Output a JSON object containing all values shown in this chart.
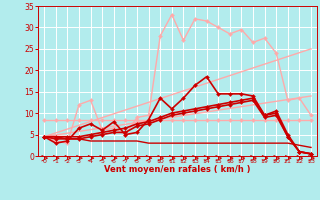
{
  "background_color": "#b2eced",
  "grid_color": "#ffffff",
  "xlabel": "Vent moyen/en rafales ( km/h )",
  "xlim": [
    -0.5,
    23.5
  ],
  "ylim": [
    0,
    35
  ],
  "xticks": [
    0,
    1,
    2,
    3,
    4,
    5,
    6,
    7,
    8,
    9,
    10,
    11,
    12,
    13,
    14,
    15,
    16,
    17,
    18,
    19,
    20,
    21,
    22,
    23
  ],
  "yticks": [
    0,
    5,
    10,
    15,
    20,
    25,
    30,
    35
  ],
  "series": [
    {
      "x": [
        0,
        1,
        2,
        3,
        4,
        5,
        6,
        7,
        8,
        9,
        10,
        11,
        12,
        13,
        14,
        15,
        16,
        17,
        18,
        19,
        20,
        21,
        22,
        23
      ],
      "y": [
        8.5,
        8.5,
        8.5,
        8.5,
        8.5,
        8.5,
        8.5,
        8.5,
        8.5,
        8.5,
        8.5,
        8.5,
        8.5,
        8.5,
        8.5,
        8.5,
        8.5,
        8.5,
        8.5,
        8.5,
        8.5,
        8.5,
        8.5,
        8.5
      ],
      "color": "#ffaaaa",
      "lw": 1.0,
      "marker": "D",
      "ms": 2.0
    },
    {
      "x": [
        0,
        23
      ],
      "y": [
        4.5,
        25.0
      ],
      "color": "#ffaaaa",
      "lw": 1.0,
      "marker": null,
      "ms": 0
    },
    {
      "x": [
        0,
        23
      ],
      "y": [
        4.5,
        14.0
      ],
      "color": "#ffaaaa",
      "lw": 1.0,
      "marker": null,
      "ms": 0
    },
    {
      "x": [
        0,
        1,
        2,
        3,
        4,
        5,
        6,
        7,
        8,
        9,
        10,
        11,
        12,
        13,
        14,
        15,
        16,
        17,
        18,
        19,
        20,
        21,
        22,
        23
      ],
      "y": [
        4.5,
        3.5,
        3.0,
        12.0,
        13.0,
        6.0,
        6.5,
        5.0,
        9.0,
        9.5,
        28.0,
        33.0,
        27.0,
        32.0,
        31.5,
        30.0,
        28.5,
        29.5,
        26.5,
        27.5,
        24.0,
        13.0,
        13.5,
        9.5
      ],
      "color": "#ffaaaa",
      "lw": 1.0,
      "marker": "D",
      "ms": 2.0
    },
    {
      "x": [
        0,
        1,
        2,
        3,
        4,
        5,
        6,
        7,
        8,
        9,
        10,
        11,
        12,
        13,
        14,
        15,
        16,
        17,
        18,
        19,
        20,
        21,
        22,
        23
      ],
      "y": [
        4.5,
        3.0,
        3.5,
        6.5,
        7.5,
        6.0,
        8.0,
        5.0,
        5.5,
        8.5,
        13.5,
        11.0,
        13.5,
        16.5,
        18.5,
        14.5,
        14.5,
        14.5,
        14.0,
        9.5,
        10.5,
        5.0,
        1.0,
        0.5
      ],
      "color": "#cc0000",
      "lw": 1.2,
      "marker": "D",
      "ms": 2.0
    },
    {
      "x": [
        0,
        1,
        2,
        3,
        4,
        5,
        6,
        7,
        8,
        9,
        10,
        11,
        12,
        13,
        14,
        15,
        16,
        17,
        18,
        19,
        20,
        21,
        22,
        23
      ],
      "y": [
        4.5,
        4.5,
        4.5,
        4.5,
        5.0,
        5.5,
        6.0,
        6.5,
        7.5,
        8.0,
        9.0,
        10.0,
        10.5,
        11.0,
        11.5,
        12.0,
        12.5,
        13.0,
        13.5,
        9.5,
        10.0,
        4.5,
        1.0,
        0.5
      ],
      "color": "#cc0000",
      "lw": 1.2,
      "marker": "D",
      "ms": 2.0
    },
    {
      "x": [
        0,
        1,
        2,
        3,
        4,
        5,
        6,
        7,
        8,
        9,
        10,
        11,
        12,
        13,
        14,
        15,
        16,
        17,
        18,
        19,
        20,
        21,
        22,
        23
      ],
      "y": [
        4.5,
        4.0,
        4.0,
        4.0,
        4.5,
        5.0,
        5.5,
        5.5,
        7.0,
        7.5,
        8.5,
        9.5,
        10.0,
        10.5,
        11.0,
        11.5,
        12.0,
        12.5,
        13.0,
        9.0,
        9.5,
        4.5,
        1.0,
        0.5
      ],
      "color": "#cc0000",
      "lw": 1.2,
      "marker": "D",
      "ms": 2.0
    },
    {
      "x": [
        0,
        1,
        2,
        3,
        4,
        5,
        6,
        7,
        8,
        9,
        10,
        11,
        12,
        13,
        14,
        15,
        16,
        17,
        18,
        19,
        20,
        21,
        22,
        23
      ],
      "y": [
        4.5,
        4.5,
        4.0,
        4.0,
        3.5,
        3.5,
        3.5,
        3.5,
        3.5,
        3.0,
        3.0,
        3.0,
        3.0,
        3.0,
        3.0,
        3.0,
        3.0,
        3.0,
        3.0,
        3.0,
        3.0,
        3.0,
        2.5,
        2.0
      ],
      "color": "#cc0000",
      "lw": 1.0,
      "marker": null,
      "ms": 0
    }
  ]
}
